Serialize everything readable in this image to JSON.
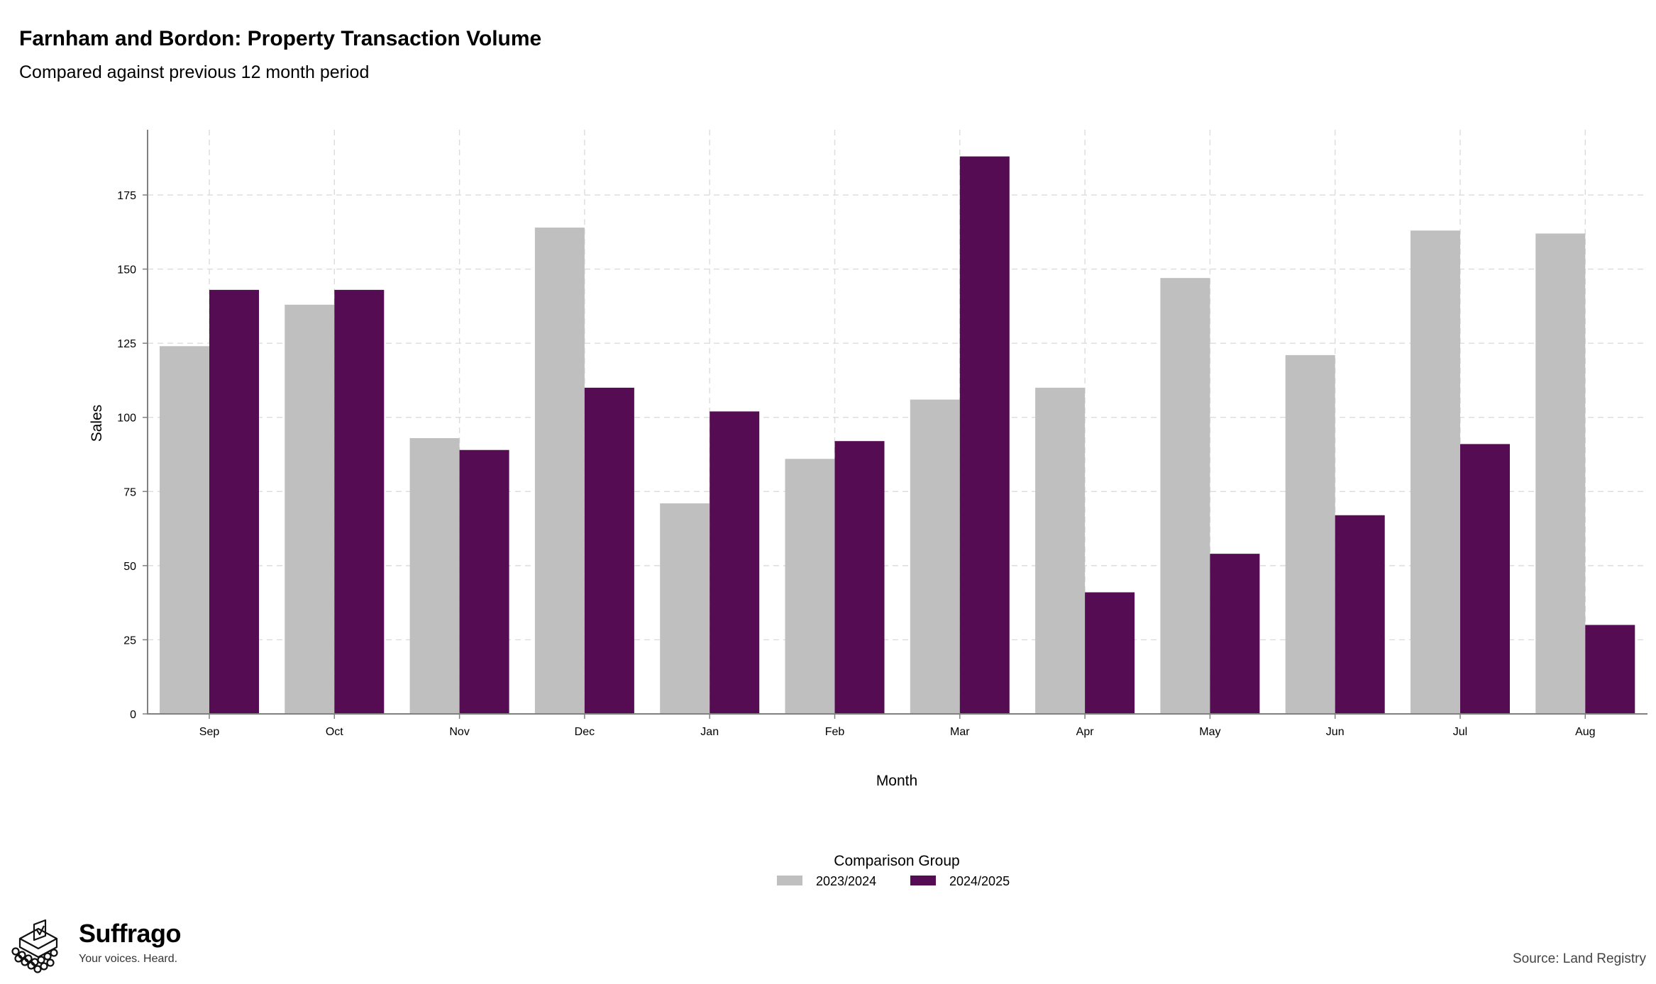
{
  "chart_data": {
    "type": "bar",
    "title": "Farnham and Bordon: Property Transaction Volume",
    "subtitle": "Compared against previous 12 month period",
    "xlabel": "Month",
    "ylabel": "Sales",
    "categories": [
      "Sep",
      "Oct",
      "Nov",
      "Dec",
      "Jan",
      "Feb",
      "Mar",
      "Apr",
      "May",
      "Jun",
      "Jul",
      "Aug"
    ],
    "series": [
      {
        "name": "2023/2024",
        "color": "#bfbfbf",
        "values": [
          124,
          138,
          93,
          164,
          71,
          86,
          106,
          110,
          147,
          121,
          163,
          162
        ]
      },
      {
        "name": "2024/2025",
        "color": "#560c52",
        "values": [
          143,
          143,
          89,
          110,
          102,
          92,
          188,
          41,
          54,
          67,
          91,
          30
        ]
      }
    ],
    "ylim": [
      0,
      197
    ],
    "yticks": [
      0,
      25,
      50,
      75,
      100,
      125,
      150,
      175
    ],
    "grid": true,
    "legend": {
      "title": "Comparison Group",
      "position": "bottom"
    }
  },
  "branding": {
    "name": "Suffrago",
    "tagline": "Your voices. Heard.",
    "icon": "ballot-box-icon"
  },
  "source": "Source: Land Registry"
}
